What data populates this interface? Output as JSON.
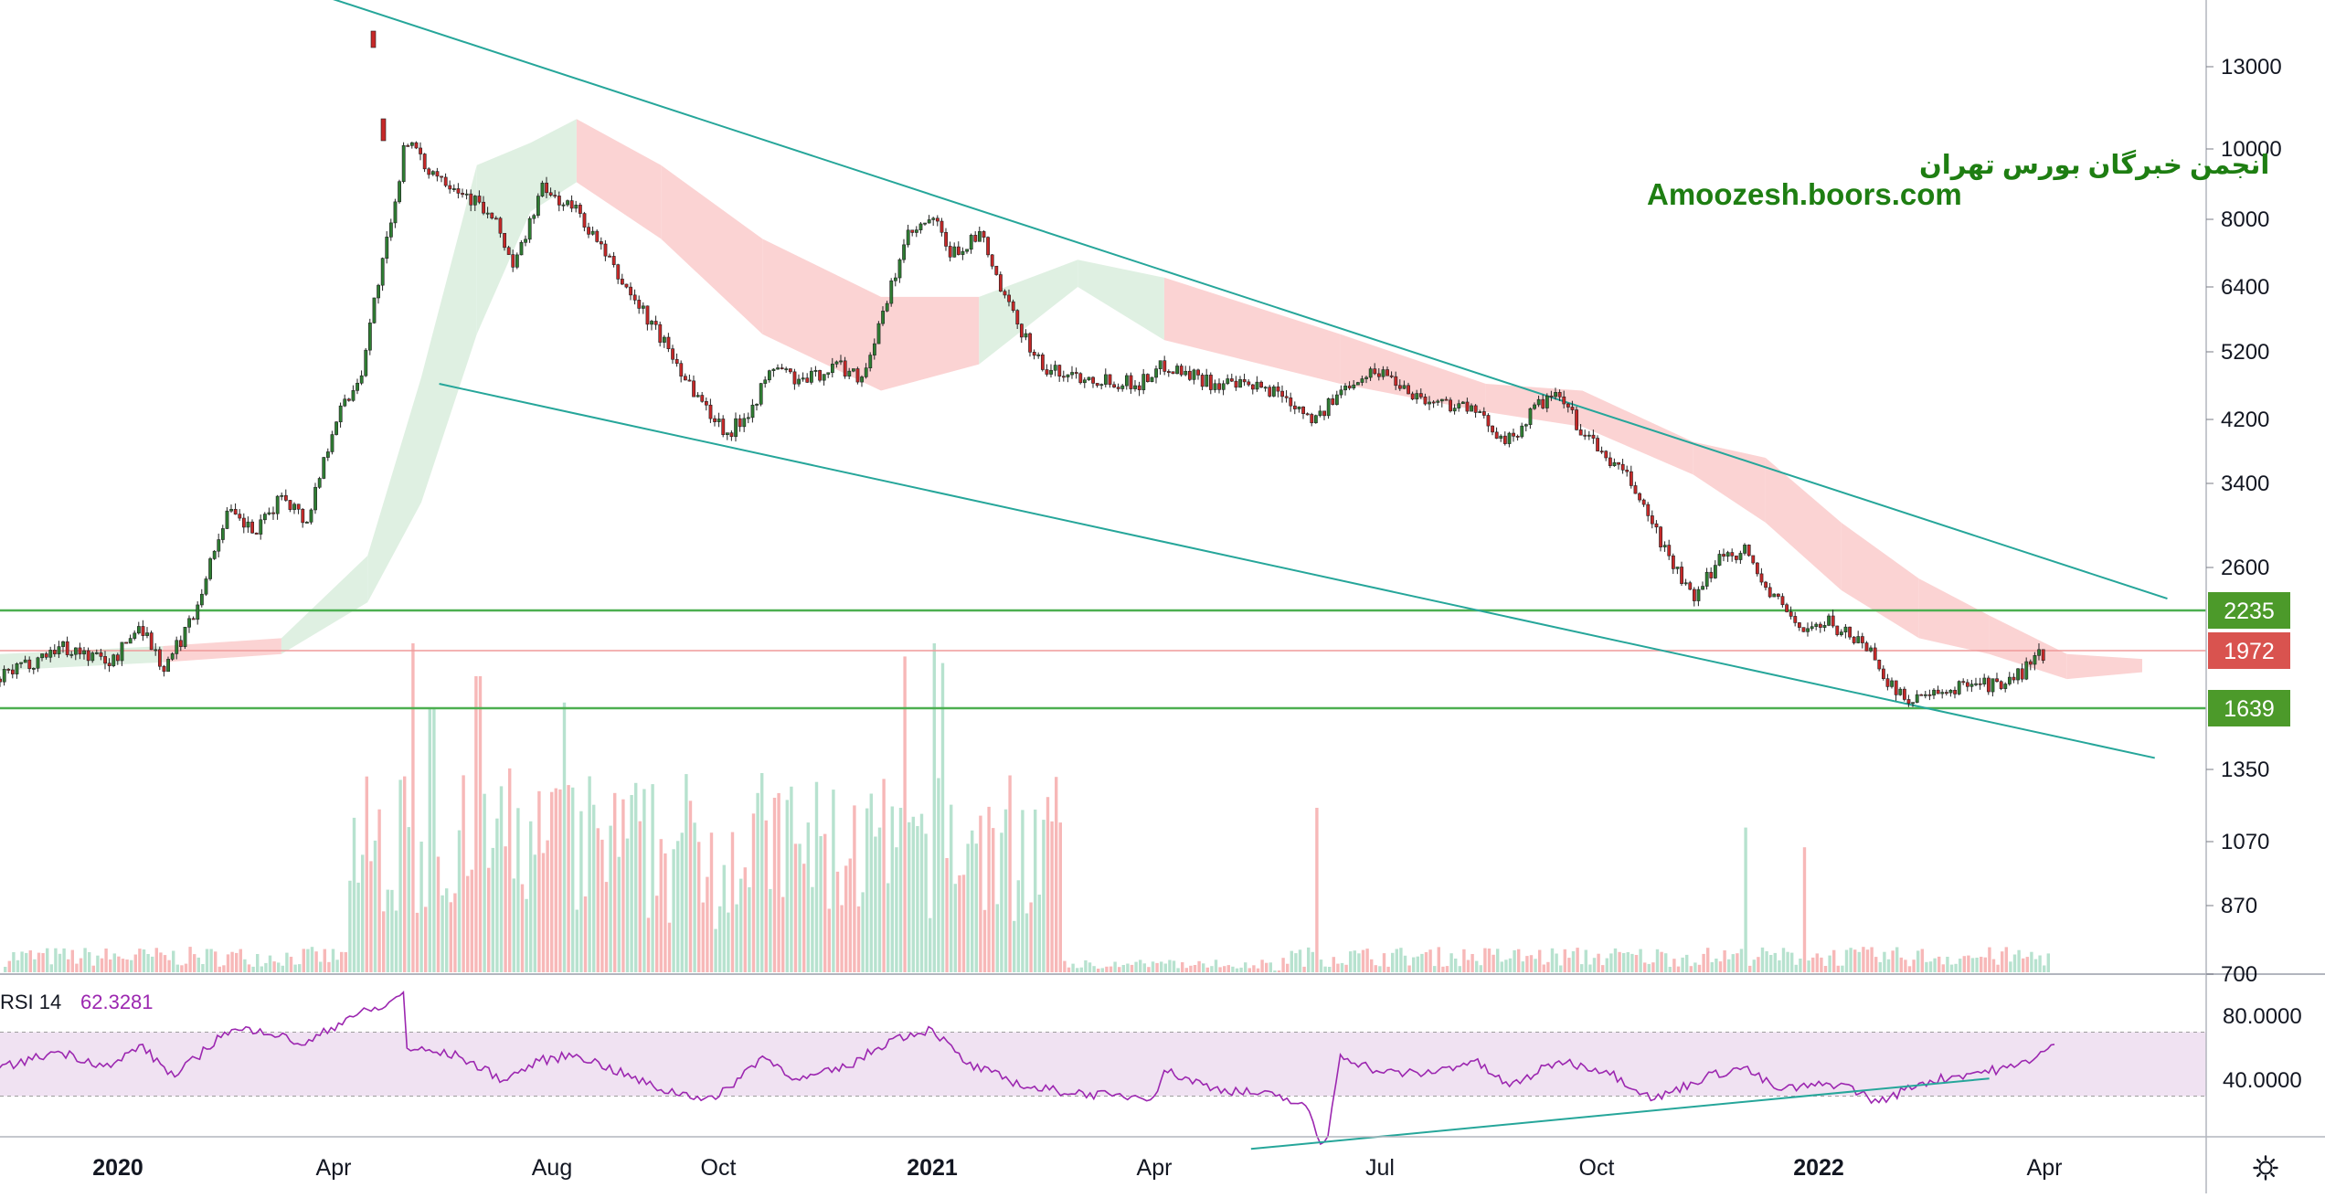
{
  "watermark": {
    "line1": "انجمن خبرگان بورس تهران",
    "line2": "Amoozesh.boors.com",
    "color": "#1e7e12"
  },
  "colors": {
    "up": "#26a69a",
    "up_body": "#2e7d32",
    "down": "#c62828",
    "volume_up": "#b7e2cf",
    "volume_down": "#f7b8b8",
    "cloud_bull": "#dff0e2",
    "cloud_bear": "#fbd3d3",
    "trendline": "#26a69a",
    "support_resistance": "#4caf50",
    "reference_line": "#ef9a9a",
    "rsi_line": "#9c27b0",
    "rsi_band": "#f0e2f2",
    "axis_text": "#131722",
    "grid_border": "#b2b5be",
    "label_green": "#4c9a2a",
    "label_red": "#d9534f"
  },
  "icons": {
    "settings": "gear-icon"
  },
  "chart_data": [
    {
      "type": "candlestick",
      "title": "",
      "price_scale": "log",
      "y_ticks": [
        "13000",
        "10000",
        "8000",
        "6400",
        "5200",
        "4200",
        "3400",
        "2600",
        "1350",
        "1070",
        "870",
        "700"
      ],
      "x_ticks": [
        "2020",
        "Apr",
        "Aug",
        "Oct",
        "2021",
        "Apr",
        "Jul",
        "Oct",
        "2022",
        "Apr"
      ],
      "x_ticks_bold": [
        "2020",
        "2021",
        "2022"
      ],
      "price_labels": [
        {
          "value": 2235,
          "text": "2235",
          "kind": "resistance",
          "color": "#4c9a2a"
        },
        {
          "value": 1972,
          "text": "1972",
          "kind": "last_price",
          "color": "#d9534f"
        },
        {
          "value": 1639,
          "text": "1639",
          "kind": "support",
          "color": "#4c9a2a"
        }
      ],
      "path_points": [
        [
          "2019-11-28",
          1800
        ],
        [
          "2019-12-15",
          2000
        ],
        [
          "2019-12-30",
          1900
        ],
        [
          "2020-01-10",
          2150
        ],
        [
          "2020-01-20",
          1850
        ],
        [
          "2020-02-01",
          2200
        ],
        [
          "2020-02-15",
          3100
        ],
        [
          "2020-02-28",
          2900
        ],
        [
          "2020-03-10",
          3300
        ],
        [
          "2020-03-20",
          3000
        ],
        [
          "2020-04-01",
          4200
        ],
        [
          "2020-04-15",
          4800
        ],
        [
          "2020-04-25",
          6500
        ],
        [
          "2020-05-05",
          8400
        ],
        [
          "2020-05-10",
          10500
        ],
        [
          "2020-05-20",
          9500
        ],
        [
          "2020-06-05",
          9000
        ],
        [
          "2020-06-20",
          8400
        ],
        [
          "2020-07-01",
          7800
        ],
        [
          "2020-07-10",
          6800
        ],
        [
          "2020-07-25",
          8800
        ],
        [
          "2020-08-10",
          8200
        ],
        [
          "2020-08-25",
          6600
        ],
        [
          "2020-09-10",
          5400
        ],
        [
          "2020-09-25",
          4400
        ],
        [
          "2020-10-05",
          4000
        ],
        [
          "2020-10-15",
          4400
        ],
        [
          "2020-10-25",
          5000
        ],
        [
          "2020-11-05",
          4700
        ],
        [
          "2020-11-20",
          5000
        ],
        [
          "2020-12-01",
          4800
        ],
        [
          "2020-12-10",
          5800
        ],
        [
          "2020-12-20",
          7500
        ],
        [
          "2021-01-01",
          8000
        ],
        [
          "2021-01-08",
          7100
        ],
        [
          "2021-01-20",
          7600
        ],
        [
          "2021-01-30",
          6100
        ],
        [
          "2021-02-15",
          4900
        ],
        [
          "2021-03-05",
          4800
        ],
        [
          "2021-03-25",
          4700
        ],
        [
          "2021-04-05",
          5000
        ],
        [
          "2021-04-25",
          4700
        ],
        [
          "2021-05-20",
          4600
        ],
        [
          "2021-06-05",
          4200
        ],
        [
          "2021-06-20",
          4800
        ],
        [
          "2021-07-01",
          4900
        ],
        [
          "2021-07-20",
          4450
        ],
        [
          "2021-08-05",
          4400
        ],
        [
          "2021-08-25",
          3900
        ],
        [
          "2021-09-05",
          4400
        ],
        [
          "2021-09-15",
          4500
        ],
        [
          "2021-09-25",
          4000
        ],
        [
          "2021-10-15",
          3400
        ],
        [
          "2021-10-30",
          2700
        ],
        [
          "2021-11-10",
          2300
        ],
        [
          "2021-11-20",
          2700
        ],
        [
          "2021-12-01",
          2750
        ],
        [
          "2021-12-10",
          2400
        ],
        [
          "2021-12-25",
          2100
        ],
        [
          "2022-01-05",
          2150
        ],
        [
          "2022-01-20",
          2000
        ],
        [
          "2022-02-01",
          1700
        ],
        [
          "2022-02-20",
          1700
        ],
        [
          "2022-03-01",
          1800
        ],
        [
          "2022-03-15",
          1750
        ],
        [
          "2022-04-01",
          1972
        ]
      ],
      "ichimoku_cloud": [
        [
          "2019-11-28",
          1850,
          1950,
          "bull"
        ],
        [
          "2020-01-20",
          1900,
          2000,
          "bear"
        ],
        [
          "2020-03-10",
          1950,
          2050,
          "bull"
        ],
        [
          "2020-04-20",
          2300,
          2700,
          "bull"
        ],
        [
          "2020-05-20",
          3200,
          4800,
          "bull"
        ],
        [
          "2020-06-20",
          5500,
          9500,
          "bull"
        ],
        [
          "2020-07-20",
          8200,
          10200,
          "bull"
        ],
        [
          "2020-08-10",
          9000,
          11000,
          "bear"
        ],
        [
          "2020-09-10",
          7500,
          9500,
          "bear"
        ],
        [
          "2020-10-20",
          5500,
          7500,
          "bear"
        ],
        [
          "2020-12-10",
          4600,
          6200,
          "bear"
        ],
        [
          "2021-01-20",
          5000,
          6200,
          "bull"
        ],
        [
          "2021-03-01",
          6400,
          7000,
          "bull"
        ],
        [
          "2021-04-05",
          5400,
          6600,
          "bear"
        ],
        [
          "2021-06-15",
          4700,
          5500,
          "bear"
        ],
        [
          "2021-08-15",
          4300,
          4700,
          "bear"
        ],
        [
          "2021-09-25",
          4100,
          4600,
          "bear"
        ],
        [
          "2021-11-10",
          3500,
          3900,
          "bear"
        ],
        [
          "2021-12-10",
          3000,
          3700,
          "bear"
        ],
        [
          "2022-01-10",
          2400,
          3000,
          "bear"
        ],
        [
          "2022-02-10",
          2050,
          2500,
          "bear"
        ],
        [
          "2022-03-10",
          1950,
          2200,
          "bear"
        ],
        [
          "2022-04-10",
          1800,
          1950,
          "bear"
        ],
        [
          "2022-05-10",
          1840,
          1920,
          "bear"
        ]
      ],
      "trendlines": [
        {
          "name": "",
          "from": [
            "2020-03-25",
            16400
          ],
          "to": [
            "2022-05-20",
            2330
          ]
        },
        {
          "name": "",
          "from": [
            "2020-05-30",
            4700
          ],
          "to": [
            "2022-05-15",
            1400
          ]
        }
      ],
      "volume_peaks": [
        [
          "2020-05-15",
          "down",
          1.0
        ],
        [
          "2020-05-25",
          "up",
          0.8
        ],
        [
          "2020-06-20",
          "down",
          0.9
        ],
        [
          "2020-08-05",
          "up",
          0.82
        ],
        [
          "2020-12-20",
          "down",
          0.96
        ],
        [
          "2021-01-01",
          "up",
          1.0
        ],
        [
          "2021-01-05",
          "up",
          0.94
        ],
        [
          "2021-06-05",
          "down",
          0.5
        ],
        [
          "2021-12-01",
          "up",
          0.44
        ],
        [
          "2021-12-25",
          "down",
          0.38
        ]
      ],
      "volume_axis_label": "700"
    },
    {
      "type": "line",
      "title": "",
      "label": "RSI 14",
      "last_value": "62.3281",
      "y_ticks": [
        "80.0000",
        "40.0000"
      ],
      "band": [
        30,
        70
      ],
      "series": [
        {
          "name": "",
          "points": [
            [
              "2019-11-28",
              47
            ],
            [
              "2019-12-15",
              58
            ],
            [
              "2019-12-30",
              48
            ],
            [
              "2020-01-10",
              62
            ],
            [
              "2020-01-25",
              42
            ],
            [
              "2020-02-15",
              70
            ],
            [
              "2020-03-01",
              72
            ],
            [
              "2020-03-20",
              62
            ],
            [
              "2020-04-10",
              80
            ],
            [
              "2020-04-30",
              86
            ],
            [
              "2020-05-10",
              95
            ],
            [
              "2020-05-12",
              60
            ],
            [
              "2020-06-10",
              55
            ],
            [
              "2020-07-05",
              40
            ],
            [
              "2020-07-25",
              52
            ],
            [
              "2020-08-10",
              56
            ],
            [
              "2020-09-10",
              34
            ],
            [
              "2020-09-30",
              28
            ],
            [
              "2020-10-20",
              55
            ],
            [
              "2020-11-05",
              40
            ],
            [
              "2020-11-25",
              48
            ],
            [
              "2020-12-15",
              66
            ],
            [
              "2021-01-01",
              72
            ],
            [
              "2021-01-15",
              50
            ],
            [
              "2021-02-10",
              35
            ],
            [
              "2021-03-15",
              30
            ],
            [
              "2021-04-01",
              30
            ],
            [
              "2021-04-05",
              46
            ],
            [
              "2021-04-25",
              35
            ],
            [
              "2021-05-20",
              30
            ],
            [
              "2021-06-01",
              24
            ],
            [
              "2021-06-07",
              0
            ],
            [
              "2021-06-10",
              5
            ],
            [
              "2021-06-15",
              56
            ],
            [
              "2021-07-01",
              45
            ],
            [
              "2021-07-20",
              44
            ],
            [
              "2021-08-10",
              52
            ],
            [
              "2021-08-25",
              36
            ],
            [
              "2021-09-15",
              52
            ],
            [
              "2021-10-05",
              46
            ],
            [
              "2021-10-25",
              28
            ],
            [
              "2021-11-15",
              42
            ],
            [
              "2021-12-01",
              48
            ],
            [
              "2021-12-15",
              34
            ],
            [
              "2022-01-10",
              38
            ],
            [
              "2022-01-25",
              26
            ],
            [
              "2022-02-10",
              38
            ],
            [
              "2022-03-01",
              44
            ],
            [
              "2022-03-20",
              48
            ],
            [
              "2022-04-01",
              58
            ],
            [
              "2022-04-05",
              62.3281
            ]
          ]
        }
      ],
      "trendlines": [
        {
          "name": "",
          "from": [
            "2021-05-10",
            -3
          ],
          "to": [
            "2022-03-10",
            41
          ]
        }
      ]
    }
  ]
}
